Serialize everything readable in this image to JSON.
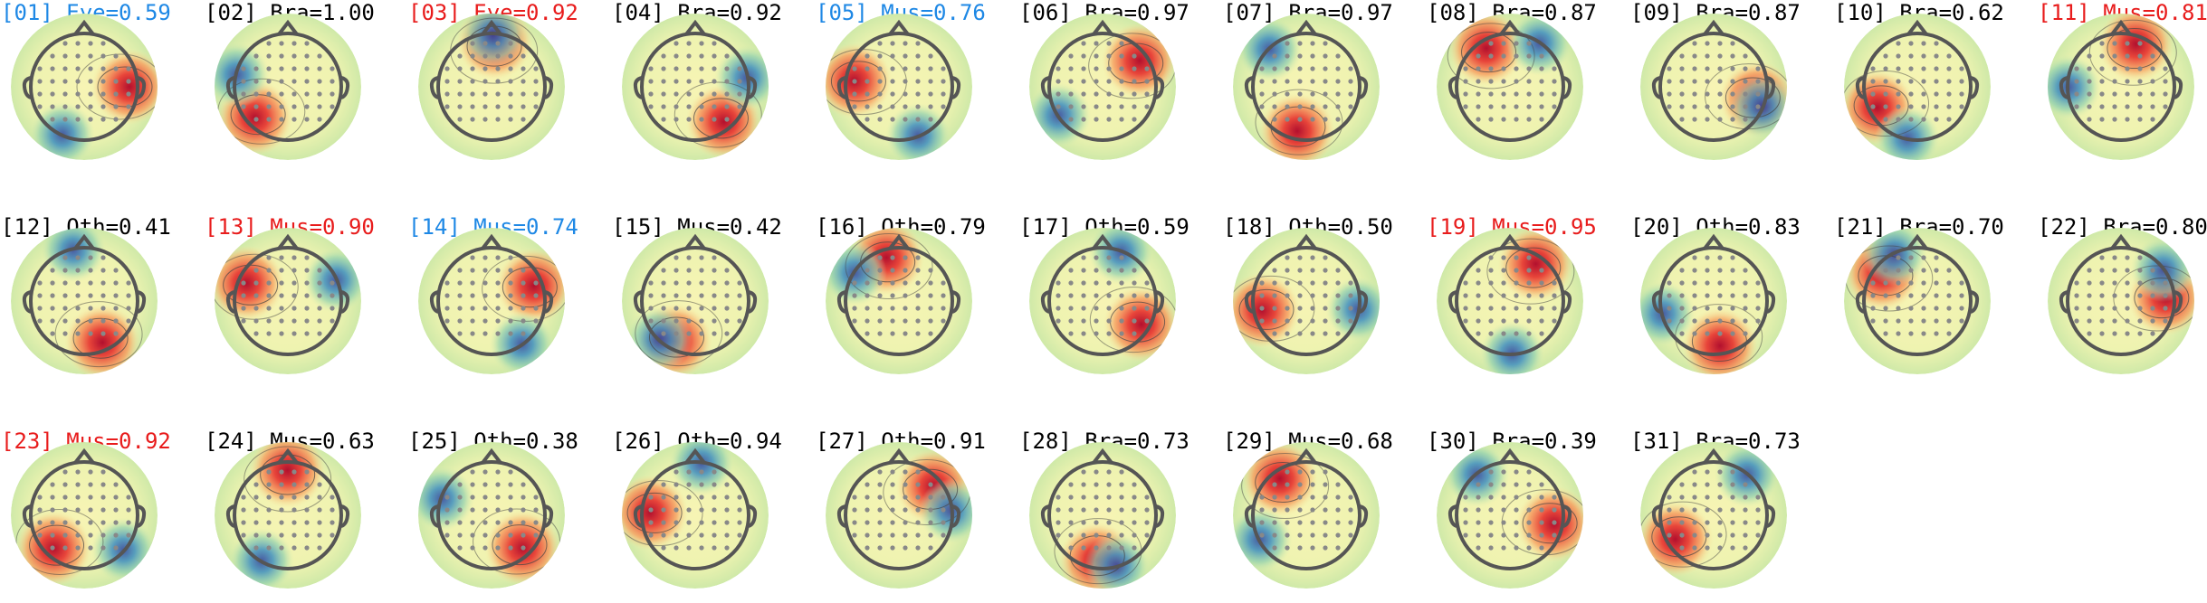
{
  "components": [
    {
      "label": "[01] Eye=0.59",
      "color": "#1e88e5"
    },
    {
      "label": "[02] Bra=1.00",
      "color": "#000000"
    },
    {
      "label": "[03] Eye=0.92",
      "color": "#e81c1c"
    },
    {
      "label": "[04] Bra=0.92",
      "color": "#000000"
    },
    {
      "label": "[05] Mus=0.76",
      "color": "#1e88e5"
    },
    {
      "label": "[06] Bra=0.97",
      "color": "#000000"
    },
    {
      "label": "[07] Bra=0.97",
      "color": "#000000"
    },
    {
      "label": "[08] Bra=0.87",
      "color": "#000000"
    },
    {
      "label": "[09] Bra=0.87",
      "color": "#000000"
    },
    {
      "label": "[10] Bra=0.62",
      "color": "#000000"
    },
    {
      "label": "[11] Mus=0.81",
      "color": "#e81c1c"
    },
    {
      "label": "[12] Oth=0.41",
      "color": "#000000"
    },
    {
      "label": "[13] Mus=0.90",
      "color": "#e81c1c"
    },
    {
      "label": "[14] Mus=0.74",
      "color": "#1e88e5"
    },
    {
      "label": "[15] Mus=0.42",
      "color": "#000000"
    },
    {
      "label": "[16] Oth=0.79",
      "color": "#000000"
    },
    {
      "label": "[17] Oth=0.59",
      "color": "#000000"
    },
    {
      "label": "[18] Oth=0.50",
      "color": "#000000"
    },
    {
      "label": "[19] Mus=0.95",
      "color": "#e81c1c"
    },
    {
      "label": "[20] Oth=0.83",
      "color": "#000000"
    },
    {
      "label": "[21] Bra=0.70",
      "color": "#000000"
    },
    {
      "label": "[22] Bra=0.80",
      "color": "#000000"
    },
    {
      "label": "[23] Mus=0.92",
      "color": "#e81c1c"
    },
    {
      "label": "[24] Mus=0.63",
      "color": "#000000"
    },
    {
      "label": "[25] Oth=0.38",
      "color": "#000000"
    },
    {
      "label": "[26] Oth=0.94",
      "color": "#000000"
    },
    {
      "label": "[27] Oth=0.91",
      "color": "#000000"
    },
    {
      "label": "[28] Bra=0.73",
      "color": "#000000"
    },
    {
      "label": "[29] Mus=0.68",
      "color": "#000000"
    },
    {
      "label": "[30] Bra=0.39",
      "color": "#000000"
    },
    {
      "label": "[31] Bra=0.73",
      "color": "#000000"
    }
  ]
}
